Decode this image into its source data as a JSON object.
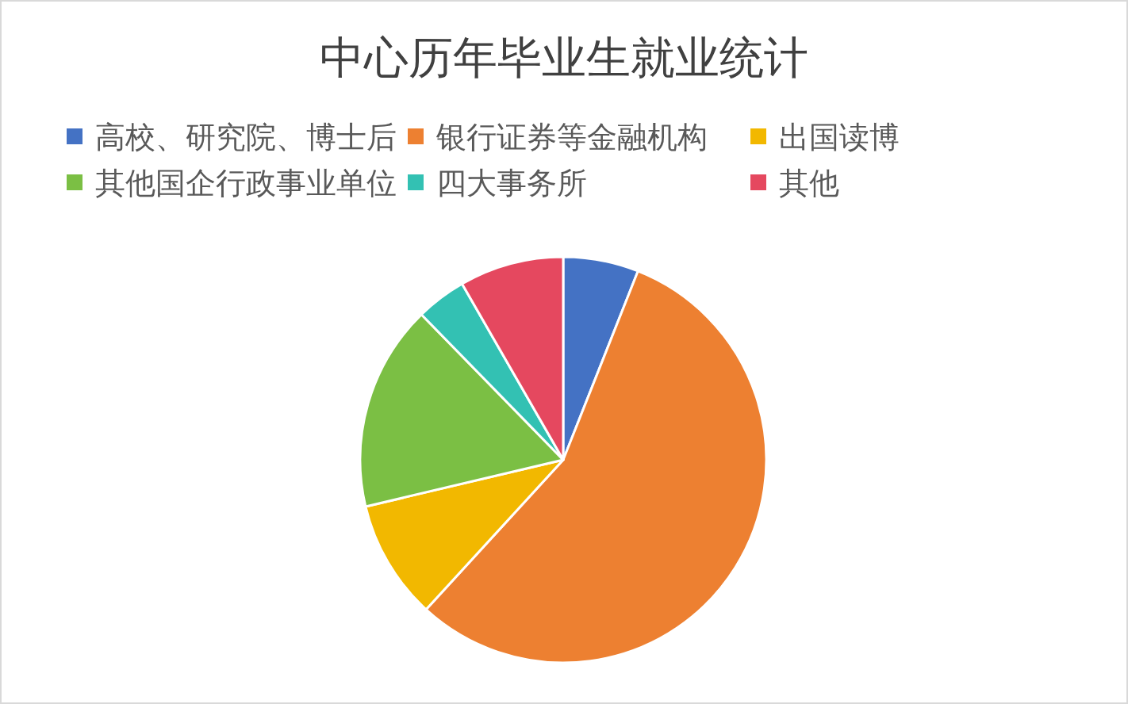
{
  "chart_data": {
    "type": "pie",
    "title": "中心历年毕业生就业统计",
    "categories": [
      "高校、研究院、博士后",
      "银行证券等金融机构",
      "出国读博",
      "其他国企行政事业单位",
      "四大事务所",
      "其他"
    ],
    "values": [
      6.0,
      55.8,
      9.5,
      16.4,
      4.0,
      8.3
    ],
    "colors": [
      "#4472c4",
      "#ed8031",
      "#f2b800",
      "#7bbf44",
      "#33c1b3",
      "#e5485f"
    ],
    "legend": "top"
  }
}
